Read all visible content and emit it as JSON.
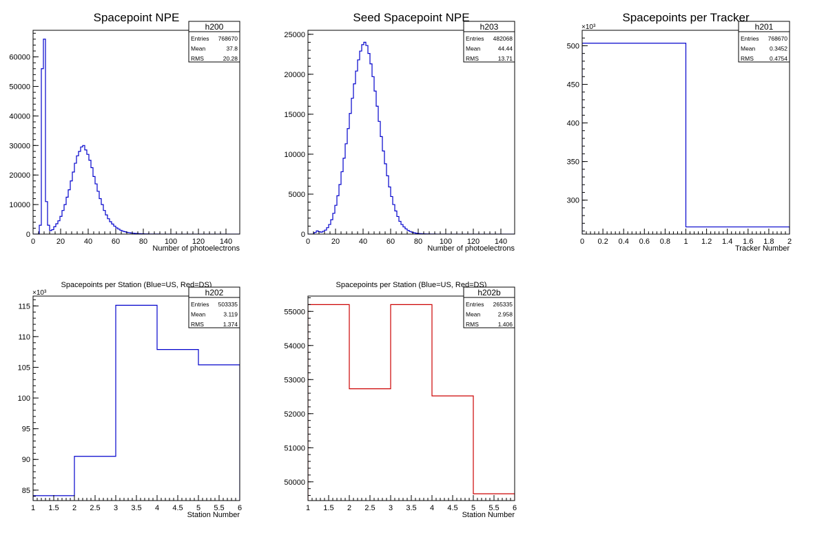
{
  "chart_data": [
    {
      "type": "histogram",
      "title": "Spacepoint NPE",
      "xlabel": "Number of photoelectrons",
      "ylabel": "",
      "xlim": [
        0,
        150
      ],
      "ylim": [
        0,
        69000
      ],
      "xticks": [
        "0",
        "20",
        "40",
        "60",
        "80",
        "100",
        "120",
        "140"
      ],
      "xtick_values": [
        0,
        20,
        40,
        60,
        80,
        100,
        120,
        140
      ],
      "yticks": [
        "0",
        "10000",
        "20000",
        "30000",
        "40000",
        "50000",
        "60000"
      ],
      "ytick_values": [
        0,
        10000,
        20000,
        30000,
        40000,
        50000,
        60000
      ],
      "y_exponent": "",
      "line_color": "#0000cc",
      "stats": {
        "name": "h200",
        "rows": [
          [
            "Entries",
            "768670"
          ],
          [
            "Mean",
            "37.8"
          ],
          [
            "RMS",
            "20.28"
          ]
        ]
      },
      "bin_width": 1.5,
      "x_start": 0,
      "values": [
        0,
        0,
        0,
        3000,
        56000,
        66000,
        11000,
        3000,
        1200,
        1500,
        2500,
        3500,
        4500,
        6000,
        8000,
        10000,
        12500,
        15000,
        18000,
        21000,
        24000,
        26500,
        28000,
        29500,
        30000,
        28500,
        27000,
        25000,
        22500,
        19500,
        17000,
        14500,
        12000,
        10000,
        8000,
        6500,
        5200,
        4200,
        3400,
        2700,
        2100,
        1700,
        1300,
        1000,
        800,
        600,
        480,
        380,
        300,
        240,
        190,
        150,
        120,
        95,
        75,
        60,
        50,
        40,
        30,
        25,
        20,
        15,
        12,
        10,
        8,
        6,
        5,
        4,
        3,
        2,
        2,
        1,
        1,
        1,
        1,
        0,
        0,
        0,
        0,
        0,
        0,
        0,
        0,
        0,
        0,
        0,
        0,
        0,
        0,
        0,
        0,
        0,
        0,
        0,
        0,
        0,
        0,
        0,
        0,
        0
      ]
    },
    {
      "type": "histogram",
      "title": "Seed Spacepoint NPE",
      "xlabel": "Number of photoelectrons",
      "ylabel": "",
      "xlim": [
        0,
        150
      ],
      "ylim": [
        0,
        25500
      ],
      "xticks": [
        "0",
        "20",
        "40",
        "60",
        "80",
        "100",
        "120",
        "140"
      ],
      "xtick_values": [
        0,
        20,
        40,
        60,
        80,
        100,
        120,
        140
      ],
      "yticks": [
        "0",
        "5000",
        "10000",
        "15000",
        "20000",
        "25000"
      ],
      "ytick_values": [
        0,
        5000,
        10000,
        15000,
        20000,
        25000
      ],
      "y_exponent": "",
      "line_color": "#0000cc",
      "stats": {
        "name": "h203",
        "rows": [
          [
            "Entries",
            "482068"
          ],
          [
            "Mean",
            "44.44"
          ],
          [
            "RMS",
            "13.71"
          ]
        ]
      },
      "bin_width": 1.5,
      "x_start": 0,
      "values": [
        0,
        0,
        0,
        200,
        400,
        300,
        250,
        350,
        500,
        800,
        1200,
        1800,
        2600,
        3600,
        4800,
        6200,
        7800,
        9500,
        11300,
        13200,
        15100,
        17000,
        18800,
        20400,
        21800,
        22900,
        23700,
        24000,
        23600,
        22600,
        21300,
        19700,
        17900,
        16000,
        14100,
        12200,
        10400,
        8800,
        7300,
        5900,
        4700,
        3700,
        2900,
        2200,
        1600,
        1200,
        900,
        650,
        470,
        330,
        230,
        160,
        110,
        80,
        60,
        45,
        35,
        25,
        20,
        15,
        10,
        8,
        6,
        5,
        4,
        3,
        2,
        1,
        1,
        1,
        0,
        0,
        0,
        0,
        0,
        0,
        0,
        0,
        0,
        0,
        0,
        0,
        0,
        0,
        0,
        0,
        0,
        0,
        0,
        0,
        0,
        0,
        0,
        0,
        0,
        0,
        0,
        0,
        0,
        0
      ]
    },
    {
      "type": "histogram",
      "title": "Spacepoints per Tracker",
      "xlabel": "Tracker Number",
      "ylabel": "",
      "xlim": [
        0,
        2
      ],
      "ylim": [
        256,
        520
      ],
      "xticks": [
        "0",
        "0.2",
        "0.4",
        "0.6",
        "0.8",
        "1",
        "1.2",
        "1.4",
        "1.6",
        "1.8",
        "2"
      ],
      "xtick_values": [
        0,
        0.2,
        0.4,
        0.6,
        0.8,
        1,
        1.2,
        1.4,
        1.6,
        1.8,
        2
      ],
      "yticks": [
        "300",
        "350",
        "400",
        "450",
        "500"
      ],
      "ytick_values": [
        300,
        350,
        400,
        450,
        500
      ],
      "y_exponent": "×10³",
      "line_color": "#0000cc",
      "stats": {
        "name": "h201",
        "rows": [
          [
            "Entries",
            "768670"
          ],
          [
            "Mean",
            "0.3452"
          ],
          [
            "RMS",
            "0.4754"
          ]
        ]
      },
      "bin_width": 1,
      "x_start": 0,
      "values": [
        503.3,
        265.3
      ]
    },
    {
      "type": "histogram",
      "title": "Spacepoints per Station (Blue=US, Red=DS)",
      "xlabel": "Station Number",
      "ylabel": "",
      "xlim": [
        1,
        6
      ],
      "ylim": [
        83.3,
        116.6
      ],
      "xticks": [
        "1",
        "1.5",
        "2",
        "2.5",
        "3",
        "3.5",
        "4",
        "4.5",
        "5",
        "5.5",
        "6"
      ],
      "xtick_values": [
        1,
        1.5,
        2,
        2.5,
        3,
        3.5,
        4,
        4.5,
        5,
        5.5,
        6
      ],
      "yticks": [
        "85",
        "90",
        "95",
        "100",
        "105",
        "110",
        "115"
      ],
      "ytick_values": [
        85,
        90,
        95,
        100,
        105,
        110,
        115
      ],
      "y_exponent": "×10³",
      "line_color": "#0000cc",
      "stats": {
        "name": "h202",
        "rows": [
          [
            "Entries",
            "503335"
          ],
          [
            "Mean",
            "3.119"
          ],
          [
            "RMS",
            "1.374"
          ]
        ]
      },
      "bin_width": 1,
      "x_start": 1,
      "values": [
        84.1,
        90.5,
        115.1,
        107.9,
        105.4
      ]
    },
    {
      "type": "histogram",
      "title": "Spacepoints per Station (Blue=US, Red=DS)",
      "xlabel": "Station Number",
      "ylabel": "",
      "xlim": [
        1,
        6
      ],
      "ylim": [
        49450,
        55450
      ],
      "xticks": [
        "1",
        "1.5",
        "2",
        "2.5",
        "3",
        "3.5",
        "4",
        "4.5",
        "5",
        "5.5",
        "6"
      ],
      "xtick_values": [
        1,
        1.5,
        2,
        2.5,
        3,
        3.5,
        4,
        4.5,
        5,
        5.5,
        6
      ],
      "yticks": [
        "50000",
        "51000",
        "52000",
        "53000",
        "54000",
        "55000"
      ],
      "ytick_values": [
        50000,
        51000,
        52000,
        53000,
        54000,
        55000
      ],
      "y_exponent": "",
      "line_color": "#cc0000",
      "stats": {
        "name": "h202b",
        "rows": [
          [
            "Entries",
            "265335"
          ],
          [
            "Mean",
            "2.958"
          ],
          [
            "RMS",
            "1.406"
          ]
        ]
      },
      "bin_width": 1,
      "x_start": 1,
      "values": [
        55200,
        52730,
        55200,
        52520,
        49650
      ]
    }
  ]
}
